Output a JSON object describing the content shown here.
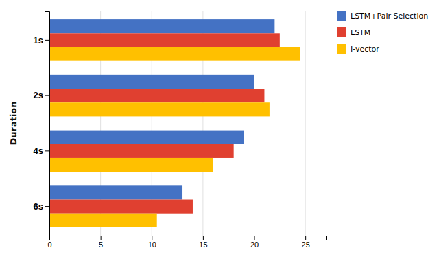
{
  "chart_data": {
    "type": "bar",
    "orientation": "horizontal",
    "categories": [
      "1s",
      "2s",
      "4s",
      "6s"
    ],
    "series": [
      {
        "name": "LSTM+Pair Selection",
        "color": "#4472C4",
        "values": [
          22.0,
          20.0,
          19.0,
          13.0
        ]
      },
      {
        "name": "LSTM",
        "color": "#E04030",
        "values": [
          22.5,
          21.0,
          18.0,
          14.0
        ]
      },
      {
        "name": "I-vector",
        "color": "#FFC000",
        "values": [
          24.5,
          21.5,
          16.0,
          10.5
        ]
      }
    ],
    "ylabel": "Duration",
    "xlim": [
      0,
      27
    ],
    "xticks": [
      0,
      5,
      10,
      15,
      20,
      25
    ],
    "grid": true,
    "legend": "right"
  }
}
